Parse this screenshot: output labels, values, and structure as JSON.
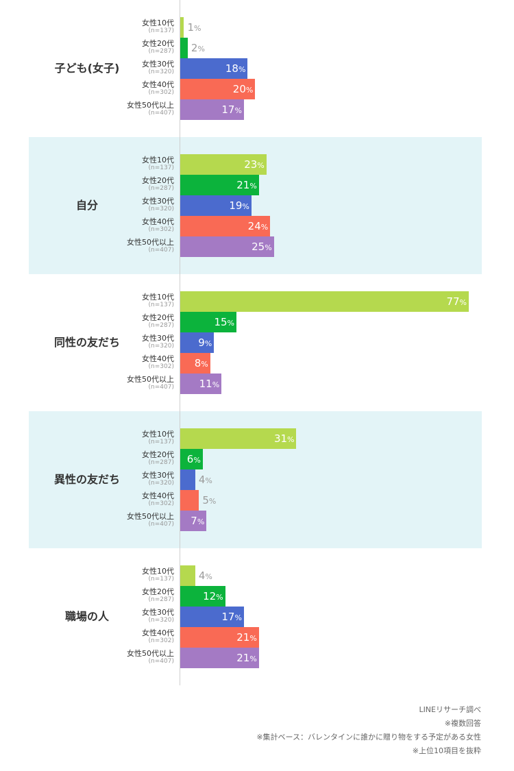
{
  "chart_data": {
    "type": "bar",
    "orientation": "horizontal",
    "unit": "%",
    "series": [
      {
        "name": "女性10代",
        "n": "(n=137)",
        "color": "#b5d94e"
      },
      {
        "name": "女性20代",
        "n": "(n=287)",
        "color": "#0cb33c"
      },
      {
        "name": "女性30代",
        "n": "(n=320)",
        "color": "#4b6bce"
      },
      {
        "name": "女性40代",
        "n": "(n=302)",
        "color": "#f96a55"
      },
      {
        "name": "女性50代以上",
        "n": "(n=407)",
        "color": "#a47ac4"
      }
    ],
    "groups": [
      {
        "label": "子ども(女子)",
        "values": [
          1,
          2,
          18,
          20,
          17
        ],
        "highlight": false
      },
      {
        "label": "自分",
        "values": [
          23,
          21,
          19,
          24,
          25
        ],
        "highlight": true
      },
      {
        "label": "同性の友だち",
        "values": [
          77,
          15,
          9,
          8,
          11
        ],
        "highlight": false
      },
      {
        "label": "異性の友だち",
        "values": [
          31,
          6,
          4,
          5,
          7
        ],
        "highlight": true
      },
      {
        "label": "職場の人",
        "values": [
          4,
          12,
          17,
          21,
          21
        ],
        "highlight": false
      }
    ],
    "xlim": [
      0,
      77
    ]
  },
  "notes": [
    "LINEリサーチ調べ",
    "※複数回答",
    "※集計ベース：バレンタインに誰かに贈り物をする予定がある女性",
    "※上位10項目を抜粋"
  ]
}
